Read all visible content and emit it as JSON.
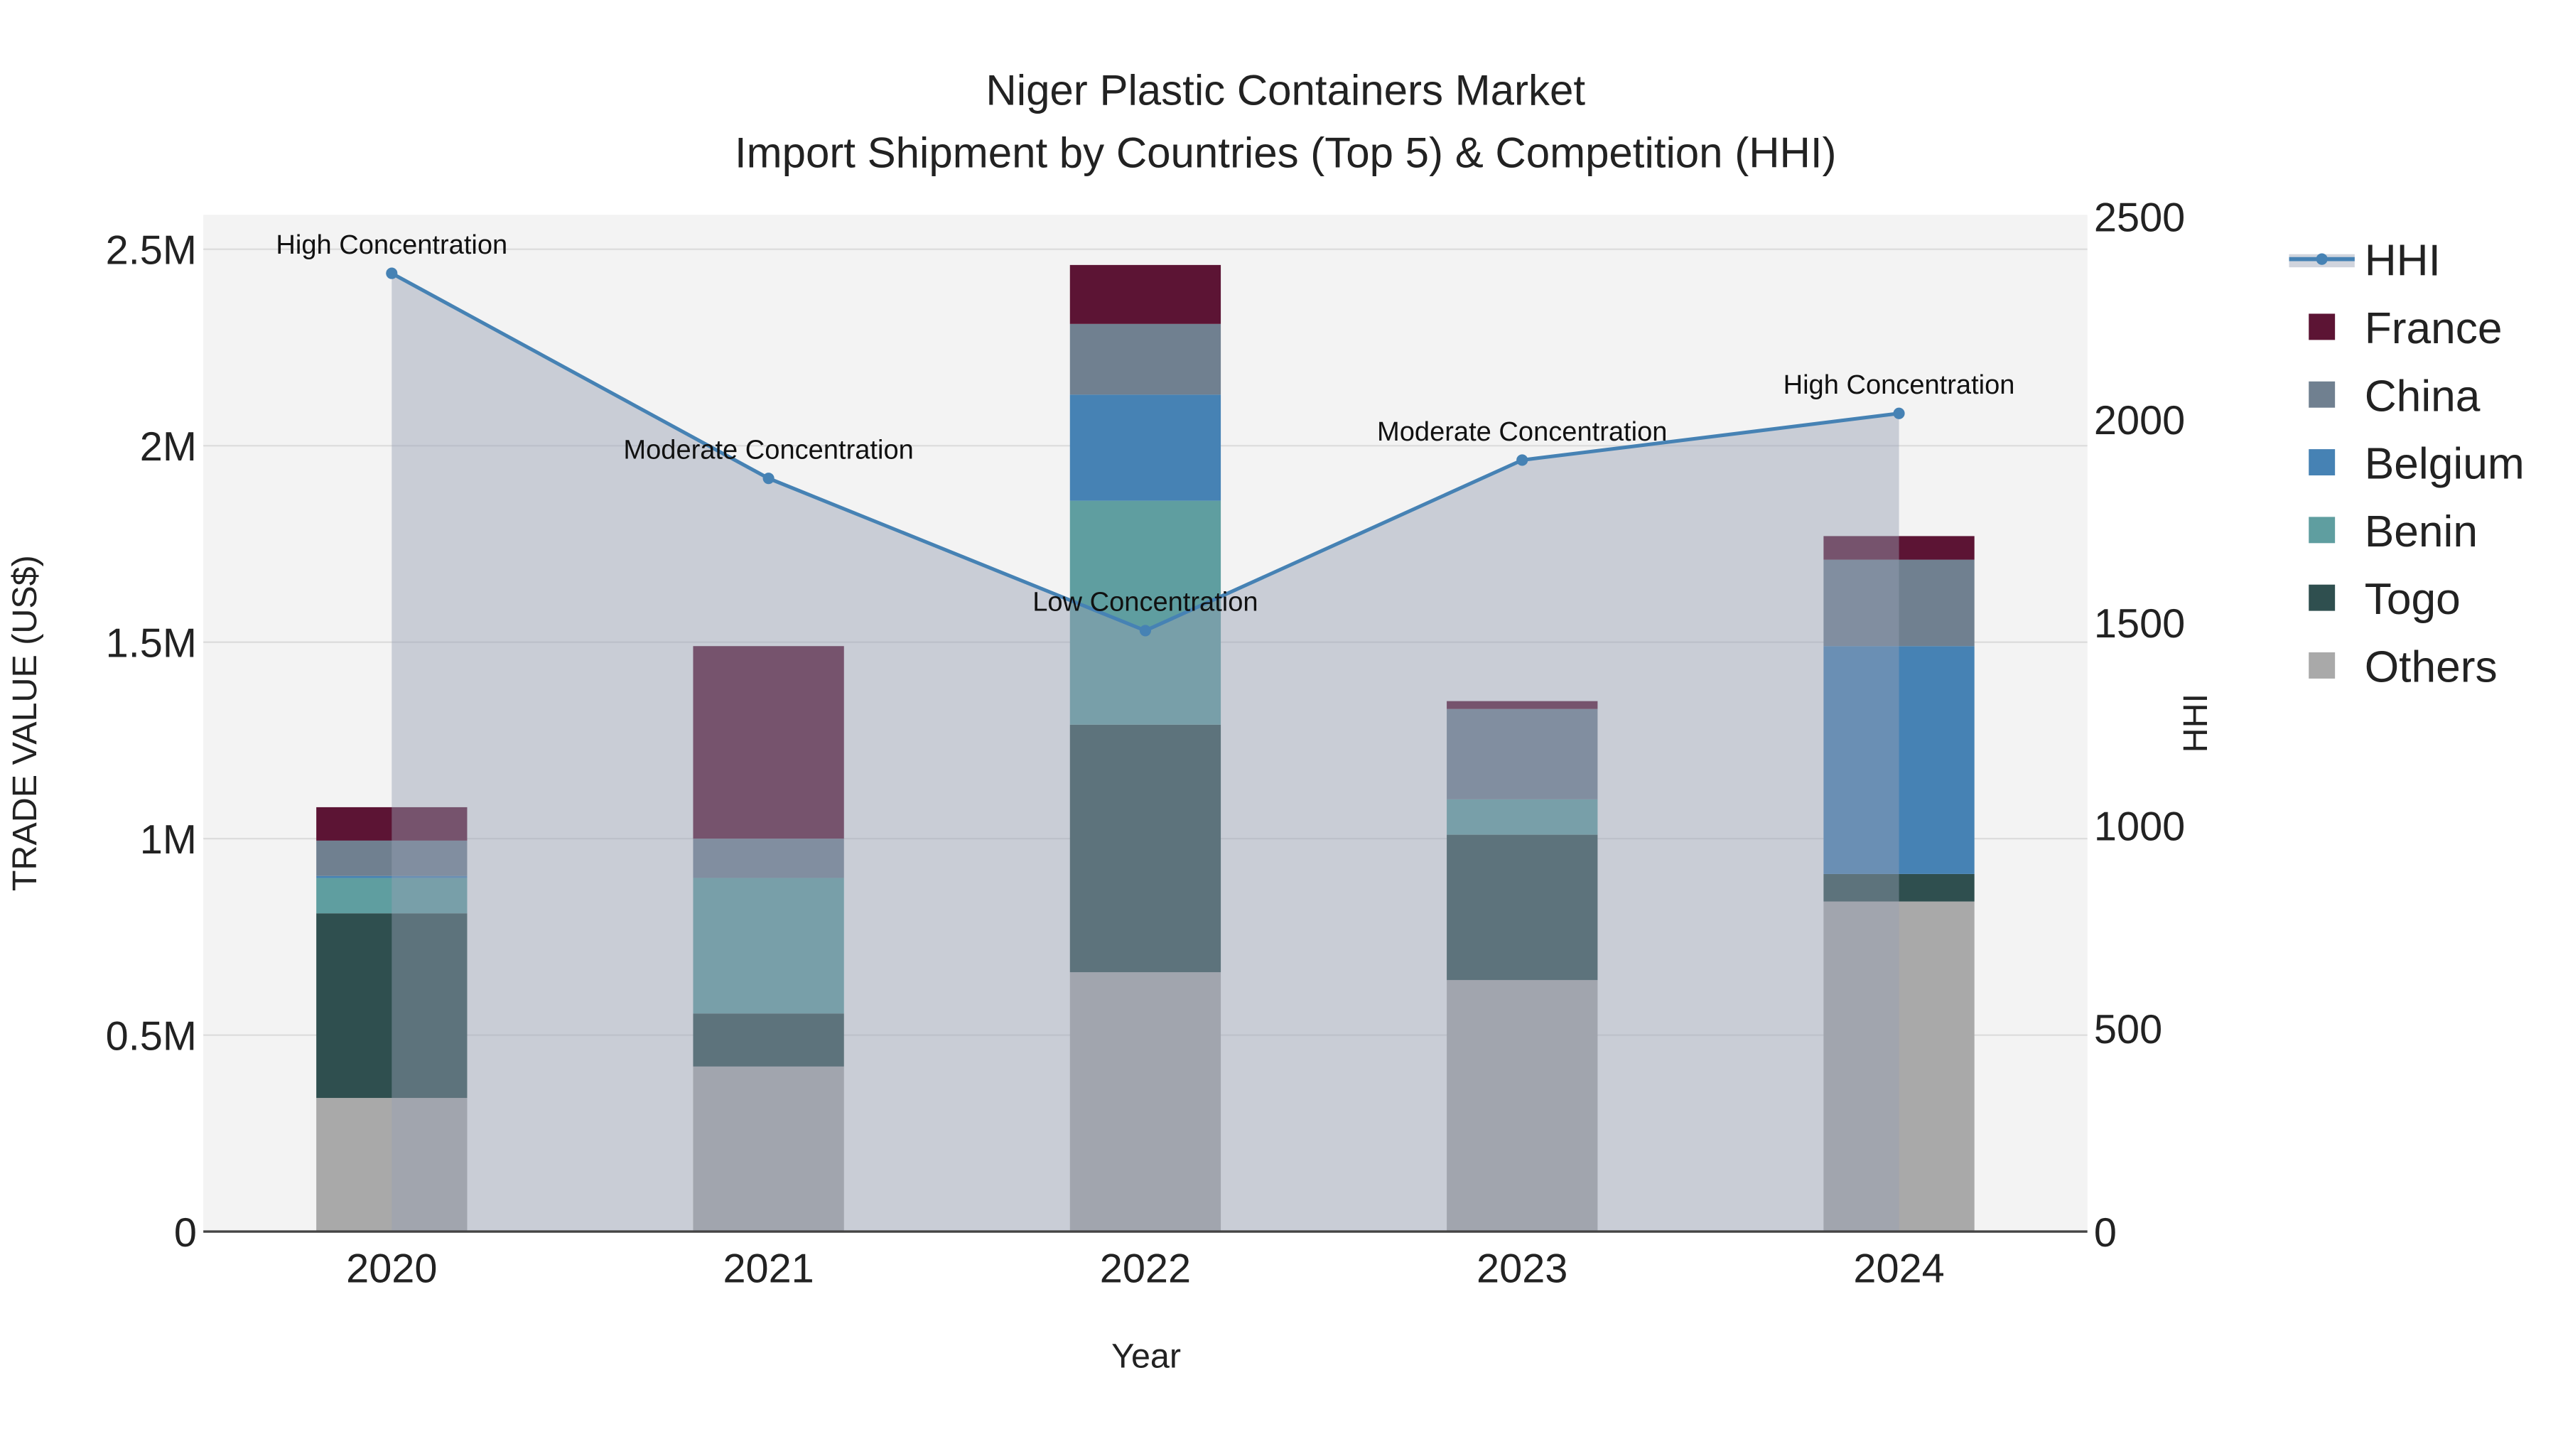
{
  "chart_data": {
    "type": "bar",
    "stacked": true,
    "title_line1": "Niger Plastic Containers Market",
    "title_line2": "Import Shipment by Countries (Top 5) & Competition (HHI)",
    "xlabel": "Year",
    "ylabel": "TRADE VALUE (US$)",
    "y2label": "HHI",
    "categories": [
      "2020",
      "2021",
      "2022",
      "2023",
      "2024"
    ],
    "ylim": [
      0,
      2580000
    ],
    "y2lim": [
      0,
      2500
    ],
    "yticks": [
      {
        "v": 0,
        "label": "0"
      },
      {
        "v": 500000,
        "label": "0.5M"
      },
      {
        "v": 1000000,
        "label": "1M"
      },
      {
        "v": 1500000,
        "label": "1.5M"
      },
      {
        "v": 2000000,
        "label": "2M"
      },
      {
        "v": 2500000,
        "label": "2.5M"
      }
    ],
    "y2ticks": [
      {
        "v": 0,
        "label": "0"
      },
      {
        "v": 500,
        "label": "500"
      },
      {
        "v": 1000,
        "label": "1000"
      },
      {
        "v": 1500,
        "label": "1500"
      },
      {
        "v": 2000,
        "label": "2000"
      },
      {
        "v": 2500,
        "label": "2500"
      }
    ],
    "series": [
      {
        "name": "Others",
        "color": "#a9a9a9",
        "values": [
          340000,
          420000,
          660000,
          640000,
          840000
        ]
      },
      {
        "name": "Togo",
        "color": "#2f4f4f",
        "values": [
          470000,
          135000,
          630000,
          370000,
          70000
        ]
      },
      {
        "name": "Benin",
        "color": "#5f9ea0",
        "values": [
          90000,
          345000,
          570000,
          90000,
          0
        ]
      },
      {
        "name": "Belgium",
        "color": "#4682b4",
        "values": [
          5000,
          0,
          270000,
          0,
          580000
        ]
      },
      {
        "name": "China",
        "color": "#708090",
        "values": [
          90000,
          100000,
          180000,
          230000,
          220000
        ]
      },
      {
        "name": "France",
        "color": "#5c1434",
        "values": [
          85000,
          490000,
          150000,
          20000,
          60000
        ]
      }
    ],
    "hhi": {
      "name": "HHI",
      "color": "#4682b4",
      "values": [
        2360,
        1855,
        1480,
        1900,
        2015
      ],
      "annotations": [
        "High Concentration",
        "Moderate Concentration",
        "Low Concentration",
        "Moderate Concentration",
        "High Concentration"
      ]
    },
    "legend": [
      "HHI",
      "France",
      "China",
      "Belgium",
      "Benin",
      "Togo",
      "Others"
    ],
    "legend_position": "right"
  }
}
